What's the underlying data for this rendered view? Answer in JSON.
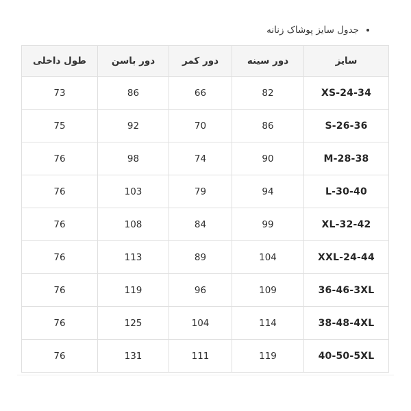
{
  "page": {
    "title": "جدول سایز پوشاک زنانه"
  },
  "table": {
    "columns": [
      {
        "key": "size",
        "label": "سایز"
      },
      {
        "key": "chest",
        "label": "دور سینه"
      },
      {
        "key": "waist",
        "label": "دور کمر"
      },
      {
        "key": "hip",
        "label": "دور باسن"
      },
      {
        "key": "inner_length",
        "label": "طول داخلی"
      }
    ],
    "rows": [
      {
        "size": "XS-24-34",
        "chest": "82",
        "waist": "66",
        "hip": "86",
        "inner_length": "73"
      },
      {
        "size": "S-26-36",
        "chest": "86",
        "waist": "70",
        "hip": "92",
        "inner_length": "75"
      },
      {
        "size": "M-28-38",
        "chest": "90",
        "waist": "74",
        "hip": "98",
        "inner_length": "76"
      },
      {
        "size": "L-30-40",
        "chest": "94",
        "waist": "79",
        "hip": "103",
        "inner_length": "76"
      },
      {
        "size": "XL-32-42",
        "chest": "99",
        "waist": "84",
        "hip": "108",
        "inner_length": "76"
      },
      {
        "size": "XXL-24-44",
        "chest": "104",
        "waist": "89",
        "hip": "113",
        "inner_length": "76"
      },
      {
        "size": "36-46-3XL",
        "chest": "109",
        "waist": "96",
        "hip": "119",
        "inner_length": "76"
      },
      {
        "size": "38-48-4XL",
        "chest": "114",
        "waist": "104",
        "hip": "125",
        "inner_length": "76"
      },
      {
        "size": "40-50-5XL",
        "chest": "119",
        "waist": "111",
        "hip": "131",
        "inner_length": "76"
      }
    ]
  },
  "colors": {
    "header_bg": "#f5f5f5",
    "border": "#e0e0e0",
    "text": "#333333"
  }
}
